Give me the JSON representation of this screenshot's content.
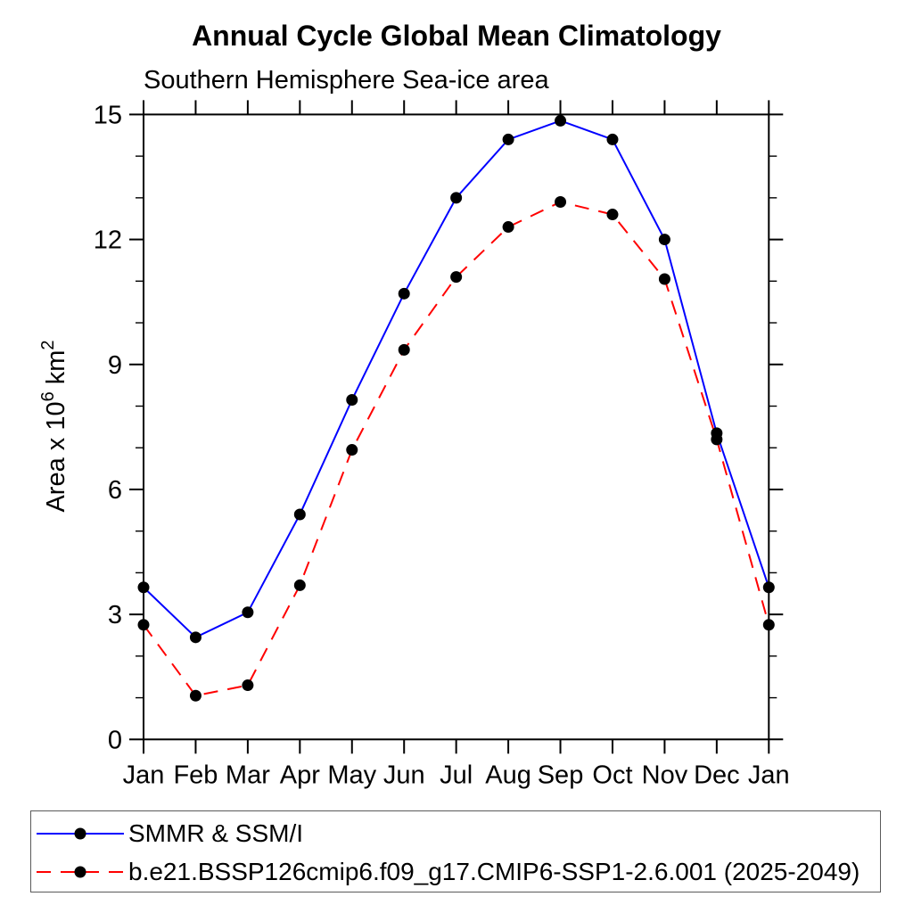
{
  "page": {
    "title": "Annual Cycle Global Mean Climatology",
    "subtitle": "Southern Hemisphere Sea-ice area"
  },
  "chart_data": {
    "type": "line",
    "title": "Annual Cycle Global Mean Climatology",
    "subtitle": "Southern Hemisphere Sea-ice area",
    "categories": [
      "Jan",
      "Feb",
      "Mar",
      "Apr",
      "May",
      "Jun",
      "Jul",
      "Aug",
      "Sep",
      "Oct",
      "Nov",
      "Dec",
      "Jan"
    ],
    "xlabel": "",
    "ylabel": "Area x 10^6 km^2",
    "ylabel_parts": {
      "prefix": "Area x 10",
      "sup1": "6",
      "mid": " km",
      "sup2": "2"
    },
    "ylim": [
      0,
      15
    ],
    "yticks_major": [
      0,
      3,
      6,
      9,
      12,
      15
    ],
    "ytick_minor_step": 1,
    "grid": false,
    "legend_position": "bottom",
    "axis_color": "#000000",
    "marker_color": "#000000",
    "marker_shape": "filled-circle",
    "series": [
      {
        "name": "SMMR & SSM/I",
        "color": "#0000ff",
        "style": "solid",
        "values": [
          3.65,
          2.45,
          3.05,
          5.4,
          8.15,
          10.7,
          13.0,
          14.4,
          14.85,
          14.4,
          12.0,
          7.35,
          3.65
        ]
      },
      {
        "name": "b.e21.BSSP126cmip6.f09_g17.CMIP6-SSP1-2.6.001 (2025-2049)",
        "color": "#ff0000",
        "style": "dashed",
        "values": [
          2.75,
          1.05,
          1.3,
          3.7,
          6.95,
          9.35,
          11.1,
          12.3,
          12.9,
          12.6,
          11.05,
          7.2,
          2.75
        ]
      }
    ]
  }
}
